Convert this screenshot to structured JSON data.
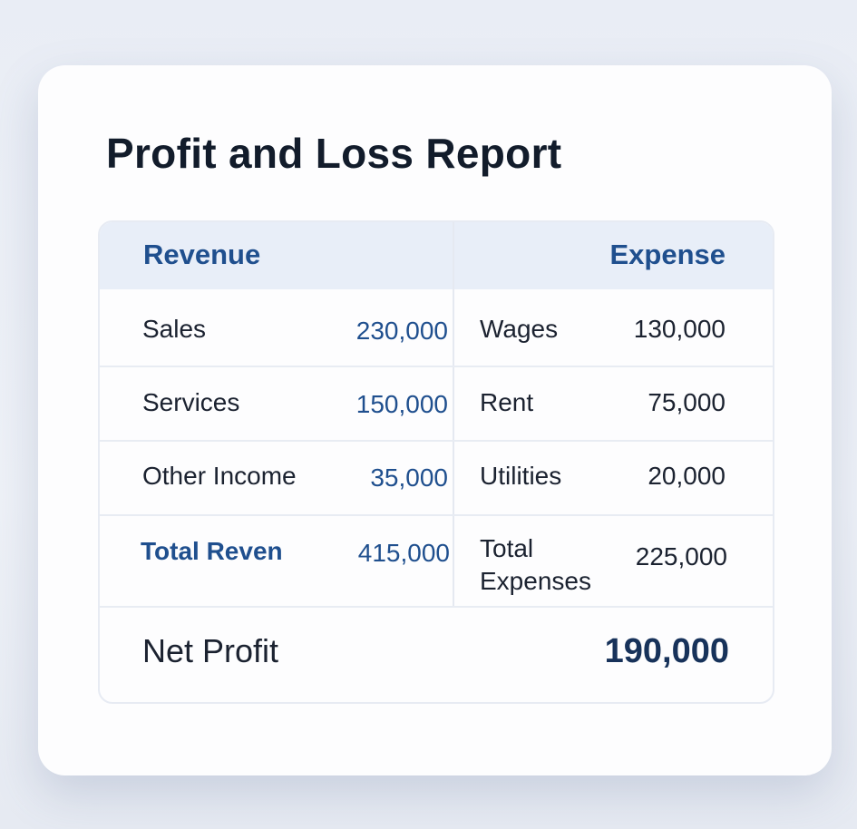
{
  "title": "Profit and Loss Report",
  "headers": {
    "revenue": "Revenue",
    "expense": "Expense"
  },
  "rows": [
    {
      "revenue_label": "Sales",
      "revenue_value": "230,000",
      "expense_label": "Wages",
      "expense_value": "130,000"
    },
    {
      "revenue_label": "Services",
      "revenue_value": "150,000",
      "expense_label": "Rent",
      "expense_value": "75,000"
    },
    {
      "revenue_label": "Other Income",
      "revenue_value": "35,000",
      "expense_label": "Utilities",
      "expense_value": "20,000"
    }
  ],
  "totals": {
    "revenue_label": "Total Reven",
    "revenue_value": "415,000",
    "expense_label_line1": "Total",
    "expense_label_line2": "Expenses",
    "expense_value": "225,000"
  },
  "net": {
    "label": "Net Profit",
    "value": "190,000"
  },
  "colors": {
    "accent": "#1f4f8e",
    "header_bg": "#e8eef8",
    "text": "#121c2b"
  }
}
